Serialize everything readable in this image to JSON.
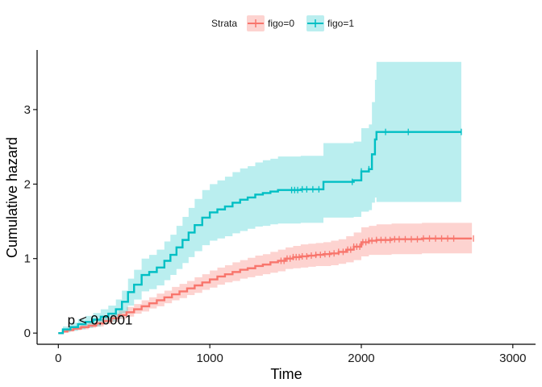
{
  "chart_data": {
    "type": "step",
    "xlabel": "Time",
    "ylabel": "Cumulative hazard",
    "xlim": [
      -140,
      3150
    ],
    "ylim": [
      -0.15,
      3.8
    ],
    "x_ticks": [
      0,
      1000,
      2000,
      3000
    ],
    "y_ticks": [
      0,
      1,
      2,
      3
    ],
    "grid": false,
    "legend_placement": "top",
    "legend_title": "Strata",
    "annotation": "p < 0.0001",
    "annotation_position": [
      60,
      0.18
    ],
    "series": [
      {
        "name": "figo=0",
        "color": "#F8766D",
        "band_color": "#F8766D",
        "points": [
          [
            0,
            0
          ],
          [
            30,
            0.02
          ],
          [
            60,
            0.04
          ],
          [
            100,
            0.06
          ],
          [
            150,
            0.08
          ],
          [
            200,
            0.1
          ],
          [
            250,
            0.13
          ],
          [
            300,
            0.16
          ],
          [
            350,
            0.2
          ],
          [
            400,
            0.24
          ],
          [
            450,
            0.28
          ],
          [
            500,
            0.32
          ],
          [
            550,
            0.36
          ],
          [
            600,
            0.4
          ],
          [
            650,
            0.44
          ],
          [
            700,
            0.48
          ],
          [
            750,
            0.52
          ],
          [
            800,
            0.56
          ],
          [
            850,
            0.6
          ],
          [
            900,
            0.64
          ],
          [
            950,
            0.68
          ],
          [
            1000,
            0.72
          ],
          [
            1050,
            0.76
          ],
          [
            1100,
            0.79
          ],
          [
            1150,
            0.82
          ],
          [
            1200,
            0.85
          ],
          [
            1250,
            0.87
          ],
          [
            1300,
            0.9
          ],
          [
            1350,
            0.92
          ],
          [
            1400,
            0.95
          ],
          [
            1450,
            0.97
          ],
          [
            1500,
            1.0
          ],
          [
            1550,
            1.02
          ],
          [
            1600,
            1.03
          ],
          [
            1650,
            1.04
          ],
          [
            1700,
            1.05
          ],
          [
            1750,
            1.06
          ],
          [
            1800,
            1.07
          ],
          [
            1850,
            1.09
          ],
          [
            1900,
            1.12
          ],
          [
            1950,
            1.16
          ],
          [
            2000,
            1.22
          ],
          [
            2050,
            1.24
          ],
          [
            2100,
            1.25
          ],
          [
            2200,
            1.26
          ],
          [
            2400,
            1.27
          ],
          [
            2730,
            1.27
          ]
        ],
        "lower": [
          [
            0,
            0
          ],
          [
            30,
            0.01
          ],
          [
            60,
            0.02
          ],
          [
            100,
            0.04
          ],
          [
            150,
            0.05
          ],
          [
            200,
            0.07
          ],
          [
            250,
            0.09
          ],
          [
            300,
            0.12
          ],
          [
            350,
            0.15
          ],
          [
            400,
            0.19
          ],
          [
            450,
            0.22
          ],
          [
            500,
            0.26
          ],
          [
            550,
            0.29
          ],
          [
            600,
            0.33
          ],
          [
            650,
            0.36
          ],
          [
            700,
            0.4
          ],
          [
            750,
            0.44
          ],
          [
            800,
            0.47
          ],
          [
            850,
            0.51
          ],
          [
            900,
            0.54
          ],
          [
            950,
            0.58
          ],
          [
            1000,
            0.61
          ],
          [
            1050,
            0.65
          ],
          [
            1100,
            0.68
          ],
          [
            1150,
            0.7
          ],
          [
            1200,
            0.73
          ],
          [
            1250,
            0.75
          ],
          [
            1300,
            0.77
          ],
          [
            1350,
            0.79
          ],
          [
            1400,
            0.81
          ],
          [
            1450,
            0.83
          ],
          [
            1500,
            0.86
          ],
          [
            1550,
            0.87
          ],
          [
            1600,
            0.88
          ],
          [
            1650,
            0.89
          ],
          [
            1700,
            0.9
          ],
          [
            1750,
            0.9
          ],
          [
            1800,
            0.91
          ],
          [
            1850,
            0.93
          ],
          [
            1900,
            0.95
          ],
          [
            1950,
            0.98
          ],
          [
            2000,
            1.03
          ],
          [
            2050,
            1.05
          ],
          [
            2100,
            1.05
          ],
          [
            2200,
            1.06
          ],
          [
            2400,
            1.07
          ],
          [
            2730,
            1.07
          ]
        ],
        "upper": [
          [
            0,
            0
          ],
          [
            30,
            0.04
          ],
          [
            60,
            0.07
          ],
          [
            100,
            0.09
          ],
          [
            150,
            0.12
          ],
          [
            200,
            0.14
          ],
          [
            250,
            0.18
          ],
          [
            300,
            0.21
          ],
          [
            350,
            0.26
          ],
          [
            400,
            0.3
          ],
          [
            450,
            0.35
          ],
          [
            500,
            0.39
          ],
          [
            550,
            0.44
          ],
          [
            600,
            0.48
          ],
          [
            650,
            0.53
          ],
          [
            700,
            0.57
          ],
          [
            750,
            0.62
          ],
          [
            800,
            0.66
          ],
          [
            850,
            0.7
          ],
          [
            900,
            0.75
          ],
          [
            950,
            0.79
          ],
          [
            1000,
            0.84
          ],
          [
            1050,
            0.88
          ],
          [
            1100,
            0.91
          ],
          [
            1150,
            0.95
          ],
          [
            1200,
            0.98
          ],
          [
            1250,
            1.01
          ],
          [
            1300,
            1.04
          ],
          [
            1350,
            1.06
          ],
          [
            1400,
            1.09
          ],
          [
            1450,
            1.12
          ],
          [
            1500,
            1.15
          ],
          [
            1550,
            1.17
          ],
          [
            1600,
            1.19
          ],
          [
            1650,
            1.2
          ],
          [
            1700,
            1.21
          ],
          [
            1750,
            1.22
          ],
          [
            1800,
            1.24
          ],
          [
            1850,
            1.26
          ],
          [
            1900,
            1.3
          ],
          [
            1950,
            1.35
          ],
          [
            2000,
            1.42
          ],
          [
            2050,
            1.44
          ],
          [
            2100,
            1.46
          ],
          [
            2200,
            1.47
          ],
          [
            2400,
            1.48
          ],
          [
            2730,
            1.48
          ]
        ],
        "censor_times": [
          1470,
          1490,
          1510,
          1530,
          1550,
          1570,
          1590,
          1610,
          1640,
          1670,
          1700,
          1730,
          1760,
          1790,
          1820,
          1850,
          1880,
          1910,
          1930,
          1950,
          1970,
          1990,
          2010,
          2030,
          2050,
          2070,
          2100,
          2130,
          2160,
          2190,
          2220,
          2250,
          2290,
          2330,
          2370,
          2410,
          2450,
          2490,
          2530,
          2570,
          2610,
          2740
        ]
      },
      {
        "name": "figo=1",
        "color": "#00BFC4",
        "band_color": "#00BFC4",
        "points": [
          [
            0,
            0
          ],
          [
            30,
            0.05
          ],
          [
            80,
            0.08
          ],
          [
            130,
            0.12
          ],
          [
            180,
            0.15
          ],
          [
            230,
            0.18
          ],
          [
            280,
            0.22
          ],
          [
            330,
            0.26
          ],
          [
            380,
            0.32
          ],
          [
            420,
            0.42
          ],
          [
            460,
            0.55
          ],
          [
            500,
            0.65
          ],
          [
            550,
            0.78
          ],
          [
            600,
            0.82
          ],
          [
            650,
            0.88
          ],
          [
            700,
            0.97
          ],
          [
            740,
            1.05
          ],
          [
            780,
            1.15
          ],
          [
            820,
            1.25
          ],
          [
            860,
            1.35
          ],
          [
            900,
            1.45
          ],
          [
            950,
            1.55
          ],
          [
            1000,
            1.62
          ],
          [
            1050,
            1.66
          ],
          [
            1100,
            1.7
          ],
          [
            1150,
            1.75
          ],
          [
            1200,
            1.79
          ],
          [
            1250,
            1.82
          ],
          [
            1300,
            1.86
          ],
          [
            1350,
            1.88
          ],
          [
            1400,
            1.9
          ],
          [
            1450,
            1.92
          ],
          [
            1600,
            1.93
          ],
          [
            1750,
            2.03
          ],
          [
            1950,
            2.05
          ],
          [
            2000,
            2.17
          ],
          [
            2050,
            2.2
          ],
          [
            2070,
            2.4
          ],
          [
            2090,
            2.6
          ],
          [
            2100,
            2.7
          ],
          [
            2660,
            2.7
          ]
        ],
        "lower": [
          [
            0,
            0
          ],
          [
            30,
            0.01
          ],
          [
            80,
            0.03
          ],
          [
            130,
            0.05
          ],
          [
            180,
            0.07
          ],
          [
            230,
            0.09
          ],
          [
            280,
            0.12
          ],
          [
            330,
            0.15
          ],
          [
            380,
            0.19
          ],
          [
            420,
            0.27
          ],
          [
            460,
            0.37
          ],
          [
            500,
            0.45
          ],
          [
            550,
            0.56
          ],
          [
            600,
            0.59
          ],
          [
            650,
            0.64
          ],
          [
            700,
            0.71
          ],
          [
            740,
            0.78
          ],
          [
            780,
            0.86
          ],
          [
            820,
            0.94
          ],
          [
            860,
            1.02
          ],
          [
            900,
            1.1
          ],
          [
            950,
            1.18
          ],
          [
            1000,
            1.24
          ],
          [
            1050,
            1.27
          ],
          [
            1100,
            1.3
          ],
          [
            1150,
            1.34
          ],
          [
            1200,
            1.37
          ],
          [
            1250,
            1.4
          ],
          [
            1300,
            1.43
          ],
          [
            1350,
            1.44
          ],
          [
            1400,
            1.46
          ],
          [
            1450,
            1.47
          ],
          [
            1600,
            1.48
          ],
          [
            1750,
            1.55
          ],
          [
            1950,
            1.56
          ],
          [
            2000,
            1.63
          ],
          [
            2050,
            1.65
          ],
          [
            2070,
            1.75
          ],
          [
            2090,
            1.82
          ],
          [
            2100,
            1.76
          ],
          [
            2660,
            1.76
          ]
        ],
        "upper": [
          [
            0,
            0
          ],
          [
            30,
            0.09
          ],
          [
            80,
            0.14
          ],
          [
            130,
            0.19
          ],
          [
            180,
            0.23
          ],
          [
            230,
            0.27
          ],
          [
            280,
            0.32
          ],
          [
            330,
            0.37
          ],
          [
            380,
            0.45
          ],
          [
            420,
            0.57
          ],
          [
            460,
            0.73
          ],
          [
            500,
            0.85
          ],
          [
            550,
            1.0
          ],
          [
            600,
            1.05
          ],
          [
            650,
            1.12
          ],
          [
            700,
            1.23
          ],
          [
            740,
            1.32
          ],
          [
            780,
            1.44
          ],
          [
            820,
            1.56
          ],
          [
            860,
            1.68
          ],
          [
            900,
            1.8
          ],
          [
            950,
            1.92
          ],
          [
            1000,
            2.0
          ],
          [
            1050,
            2.05
          ],
          [
            1100,
            2.1
          ],
          [
            1150,
            2.16
          ],
          [
            1200,
            2.21
          ],
          [
            1250,
            2.24
          ],
          [
            1300,
            2.29
          ],
          [
            1350,
            2.32
          ],
          [
            1400,
            2.34
          ],
          [
            1450,
            2.37
          ],
          [
            1600,
            2.38
          ],
          [
            1750,
            2.55
          ],
          [
            1950,
            2.57
          ],
          [
            2000,
            2.75
          ],
          [
            2050,
            2.8
          ],
          [
            2070,
            3.1
          ],
          [
            2090,
            3.4
          ],
          [
            2100,
            3.64
          ],
          [
            2660,
            3.64
          ]
        ],
        "censor_times": [
          1540,
          1560,
          1580,
          1610,
          1640,
          1680,
          1720,
          1940,
          2000,
          2050,
          2160,
          2310,
          2660
        ]
      }
    ]
  }
}
